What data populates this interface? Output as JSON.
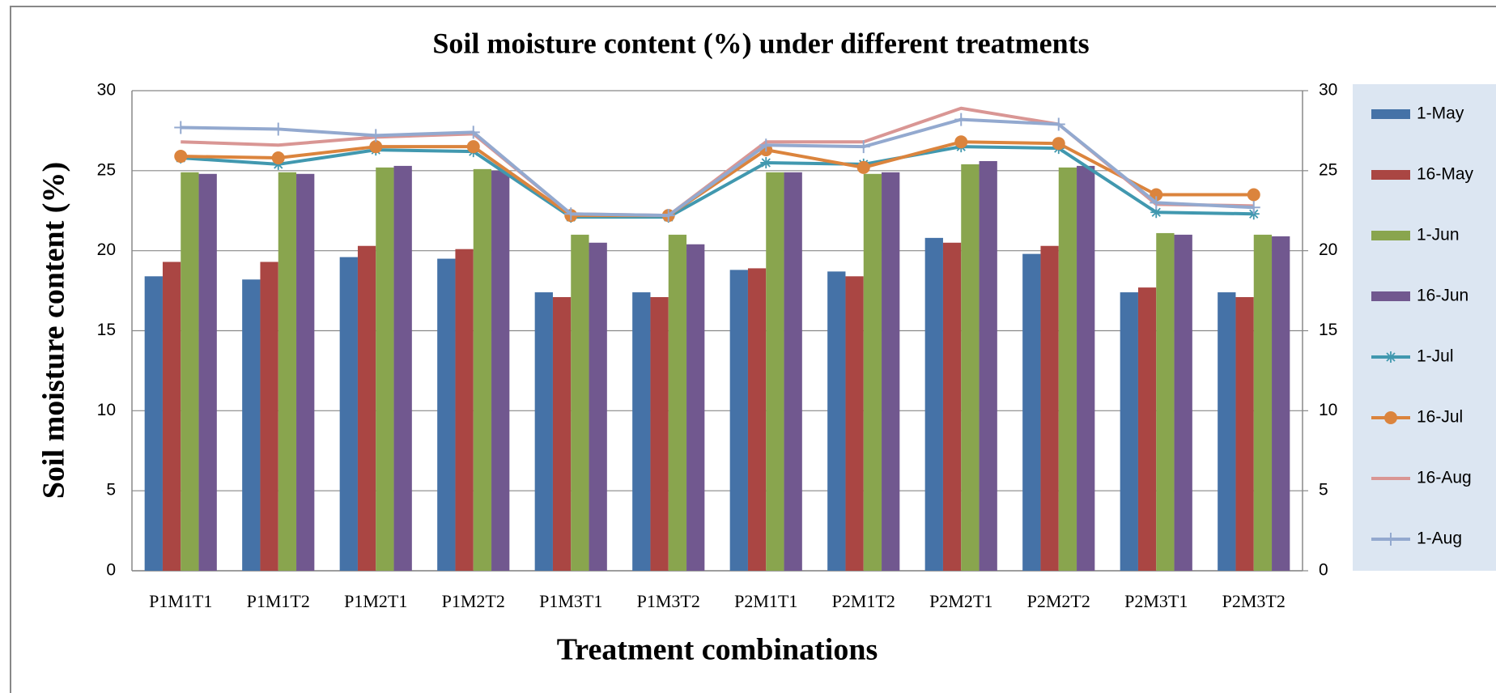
{
  "chart_data": {
    "type": "bar",
    "title": "Soil moisture content (%) under different treatments",
    "x_label": "Treatment combinations",
    "y_label": "Soil moisture content (%)",
    "categories": [
      "P1M1T1",
      "P1M1T2",
      "P1M2T1",
      "P1M2T2",
      "P1M3T1",
      "P1M3T2",
      "P2M1T1",
      "P2M1T2",
      "P2M2T1",
      "P2M2T2",
      "P2M3T1",
      "P2M3T2"
    ],
    "series": [
      {
        "name": "1-May",
        "type": "bar",
        "color": "#4572a7",
        "values": [
          18.4,
          18.2,
          19.6,
          19.5,
          17.4,
          17.4,
          18.8,
          18.7,
          20.8,
          19.8,
          17.4,
          17.4
        ]
      },
      {
        "name": "16-May",
        "type": "bar",
        "color": "#aa4643",
        "values": [
          19.3,
          19.3,
          20.3,
          20.1,
          17.1,
          17.1,
          18.9,
          18.4,
          20.5,
          20.3,
          17.7,
          17.1
        ]
      },
      {
        "name": "1-Jun",
        "type": "bar",
        "color": "#89a54e",
        "values": [
          24.9,
          24.9,
          25.2,
          25.1,
          21.0,
          21.0,
          24.9,
          24.8,
          25.4,
          25.2,
          21.1,
          21.0
        ]
      },
      {
        "name": "16-Jun",
        "type": "bar",
        "color": "#71588f",
        "values": [
          24.8,
          24.8,
          25.3,
          25.0,
          20.5,
          20.4,
          24.9,
          24.9,
          25.6,
          25.3,
          21.0,
          20.9
        ]
      },
      {
        "name": "1-Jul",
        "type": "line",
        "marker": "star",
        "color": "#4198af",
        "values": [
          25.8,
          25.4,
          26.3,
          26.2,
          22.1,
          22.1,
          25.5,
          25.4,
          26.5,
          26.4,
          22.4,
          22.3
        ]
      },
      {
        "name": "16-Jul",
        "type": "line",
        "marker": "circle",
        "color": "#db843d",
        "values": [
          25.9,
          25.8,
          26.5,
          26.5,
          22.2,
          22.2,
          26.3,
          25.2,
          26.8,
          26.7,
          23.5,
          23.5
        ]
      },
      {
        "name": "16-Aug",
        "type": "line",
        "marker": "none",
        "color": "#d99694",
        "values": [
          26.8,
          26.6,
          27.1,
          27.3,
          22.3,
          22.2,
          26.8,
          26.8,
          28.9,
          27.9,
          22.9,
          22.8
        ]
      },
      {
        "name": "1-Aug",
        "type": "line",
        "marker": "plus",
        "color": "#93a9cf",
        "values": [
          27.7,
          27.6,
          27.2,
          27.4,
          22.3,
          22.2,
          26.6,
          26.5,
          28.2,
          27.9,
          23.0,
          22.7
        ]
      }
    ],
    "ylim": [
      0,
      30
    ],
    "yticks": [
      0,
      5,
      10,
      15,
      20,
      25,
      30
    ],
    "y2lim": [
      0,
      30
    ],
    "y2ticks": [
      0,
      5,
      10,
      15,
      20,
      25,
      30
    ],
    "grid": true,
    "legend": "right"
  }
}
